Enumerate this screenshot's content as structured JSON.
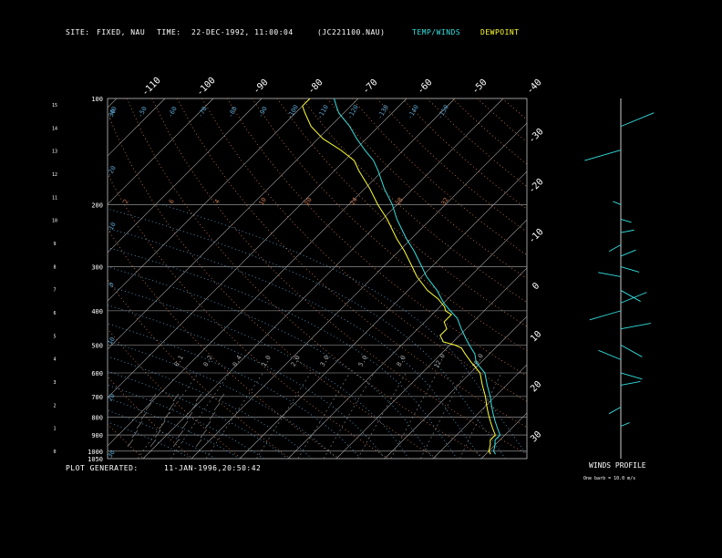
{
  "header": {
    "site_label": "SITE:",
    "site_value": "FIXED, NAU",
    "time_label": "TIME:",
    "time_value": "22-DEC-1992, 11:00:04",
    "file": "(JC221100.NAU)",
    "temp_label": "TEMP/WINDS",
    "dew_label": "DEWPOINT",
    "temp_color": "#33e0e0",
    "dew_color": "#ffff33"
  },
  "footer": {
    "generated_label": "PLOT GENERATED:",
    "generated_value": "11-JAN-1996,20:50:42"
  },
  "winds": {
    "title": "WINDS PROFILE",
    "note": "One barb = 10.0 m/s"
  },
  "chart_data": {
    "type": "line",
    "pressure_ticks": [
      "100",
      "200",
      "300",
      "400",
      "500",
      "600",
      "700",
      "800",
      "900",
      "1000",
      "1050"
    ],
    "pressure_values": [
      100,
      200,
      300,
      400,
      500,
      600,
      700,
      800,
      900,
      1000,
      1050
    ],
    "height_ticks": [
      "0",
      "1",
      "2",
      "3",
      "4",
      "5",
      "6",
      "7",
      "8",
      "9",
      "10",
      "11",
      "12",
      "13",
      "14",
      "15"
    ],
    "top_temp_ticks": [
      "-110",
      "-100",
      "-90",
      "-80",
      "-70",
      "-60",
      "-50",
      "-40"
    ],
    "right_temp_ticks": [
      "-30",
      "-20",
      "-10",
      "0",
      "10",
      "20",
      "30"
    ],
    "right_temp_values": [
      -30,
      -20,
      -10,
      0,
      10,
      20,
      30
    ],
    "skew_temp_values": [
      -140,
      -130,
      -120,
      -110,
      -100,
      -90,
      -80,
      -70,
      -60,
      -50,
      -40,
      -30,
      -20,
      -10,
      0,
      10,
      20,
      30,
      40
    ],
    "dry_adiabat_labels": [
      "-40",
      "-50",
      "-60",
      "-70",
      "-80",
      "-90",
      "-100",
      "-110",
      "-120",
      "-130",
      "-140",
      "-150"
    ],
    "moist_labels": [
      "-30",
      "-20",
      "-10",
      "0",
      "10",
      "20",
      "30"
    ],
    "mixing_ratio_labels": [
      "0.1",
      "0.2",
      "0.4",
      "1.0",
      "2.0",
      "3.0",
      "5.0",
      "8.0",
      "12.0",
      "20.0"
    ],
    "theta_labels": [
      "2",
      "6",
      "4",
      "10",
      "20",
      "24",
      "28",
      "32"
    ],
    "temp_series": {
      "name": "TEMP/WINDS",
      "pressure": [
        1020,
        1000,
        960,
        930,
        900,
        860,
        820,
        780,
        740,
        700,
        650,
        600,
        560,
        530,
        500,
        480,
        450,
        420,
        400,
        380,
        350,
        320,
        300,
        270,
        250,
        220,
        200,
        180,
        160,
        150,
        140,
        130,
        120,
        110,
        105,
        100
      ],
      "temp": [
        32,
        31,
        30,
        29,
        29,
        27,
        25,
        23,
        21,
        19,
        16,
        13,
        9,
        7,
        4,
        2,
        -1,
        -4,
        -7,
        -10,
        -14,
        -19,
        -22,
        -27,
        -31,
        -37,
        -41,
        -46,
        -51,
        -54,
        -58,
        -62,
        -66,
        -71,
        -73,
        -75
      ]
    },
    "dew_series": {
      "name": "DEWPOINT",
      "pressure": [
        1020,
        1000,
        960,
        930,
        900,
        860,
        820,
        780,
        740,
        700,
        650,
        600,
        560,
        530,
        510,
        500,
        490,
        470,
        450,
        430,
        410,
        400,
        390,
        370,
        350,
        320,
        300,
        270,
        250,
        220,
        200,
        180,
        160,
        150,
        140,
        130,
        120,
        110,
        105,
        100
      ],
      "temp": [
        31,
        30,
        29,
        28,
        28,
        26,
        24,
        22,
        20,
        18,
        15,
        12,
        8,
        5,
        3,
        1,
        -2,
        -4,
        -4,
        -6,
        -6,
        -8,
        -9,
        -12,
        -16,
        -21,
        -24,
        -29,
        -33,
        -39,
        -44,
        -49,
        -55,
        -58,
        -63,
        -69,
        -74,
        -78,
        -80,
        -80
      ]
    },
    "wind_profile": [
      {
        "p": 1000,
        "spd": 0
      },
      {
        "p": 950,
        "spd": 0
      },
      {
        "p": 850,
        "spd": 3
      },
      {
        "p": 750,
        "spd": 8
      },
      {
        "p": 650,
        "spd": 12
      },
      {
        "p": 600,
        "spd": 15
      },
      {
        "p": 550,
        "spd": 18
      },
      {
        "p": 500,
        "spd": 20
      },
      {
        "p": 450,
        "spd": 22
      },
      {
        "p": 400,
        "spd": 25
      },
      {
        "p": 380,
        "spd": 22
      },
      {
        "p": 350,
        "spd": 18
      },
      {
        "p": 320,
        "spd": 15
      },
      {
        "p": 300,
        "spd": 12
      },
      {
        "p": 280,
        "spd": 10
      },
      {
        "p": 260,
        "spd": 8
      },
      {
        "p": 240,
        "spd": 6
      },
      {
        "p": 220,
        "spd": 4
      },
      {
        "p": 200,
        "spd": 2
      },
      {
        "p": 180,
        "spd": 0
      },
      {
        "p": 160,
        "spd": 0
      },
      {
        "p": 140,
        "spd": 30
      },
      {
        "p": 120,
        "spd": 30
      }
    ]
  }
}
